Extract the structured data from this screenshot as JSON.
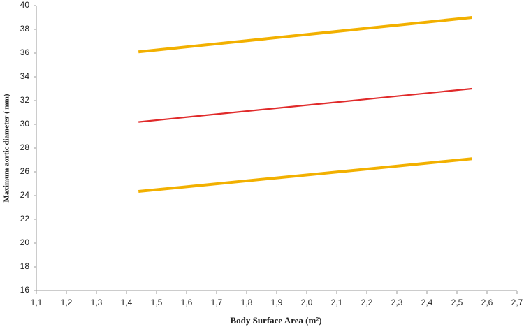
{
  "chart_data": {
    "type": "line",
    "x_label": "Body Surface Area (m²)",
    "y_label": "Maximum aortic diameter ( mm)",
    "series": [
      {
        "color": "#f2b000",
        "x": [
          1.44,
          2.55
        ],
        "values": [
          36.1,
          39.0
        ]
      },
      {
        "color": "#e02a2a",
        "x": [
          1.44,
          2.55
        ],
        "values": [
          30.2,
          33.0
        ]
      },
      {
        "color": "#f2b000",
        "x": [
          1.44,
          2.55
        ],
        "values": [
          24.35,
          27.1
        ]
      }
    ],
    "xlim": [
      1.1,
      2.7
    ],
    "xticks": [
      {
        "value": 1.1,
        "label": "1,1"
      },
      {
        "value": 1.2,
        "label": "1,2"
      },
      {
        "value": 1.3,
        "label": "1,3"
      },
      {
        "value": 1.4,
        "label": "1,4"
      },
      {
        "value": 1.5,
        "label": "1,5"
      },
      {
        "value": 1.6,
        "label": "1,6"
      },
      {
        "value": 1.7,
        "label": "1,7"
      },
      {
        "value": 1.8,
        "label": "1,8"
      },
      {
        "value": 1.9,
        "label": "1,9"
      },
      {
        "value": 2.0,
        "label": "2,0"
      },
      {
        "value": 2.1,
        "label": "2,1"
      },
      {
        "value": 2.2,
        "label": "2,2"
      },
      {
        "value": 2.3,
        "label": "2,3"
      },
      {
        "value": 2.4,
        "label": "2,4"
      },
      {
        "value": 2.5,
        "label": "2,5"
      },
      {
        "value": 2.6,
        "label": "2,6"
      },
      {
        "value": 2.7,
        "label": "2,7"
      }
    ],
    "ylim": [
      16,
      40
    ],
    "yticks": [
      16,
      18,
      20,
      22,
      24,
      26,
      28,
      30,
      32,
      34,
      36,
      38,
      40
    ],
    "grid": false
  }
}
